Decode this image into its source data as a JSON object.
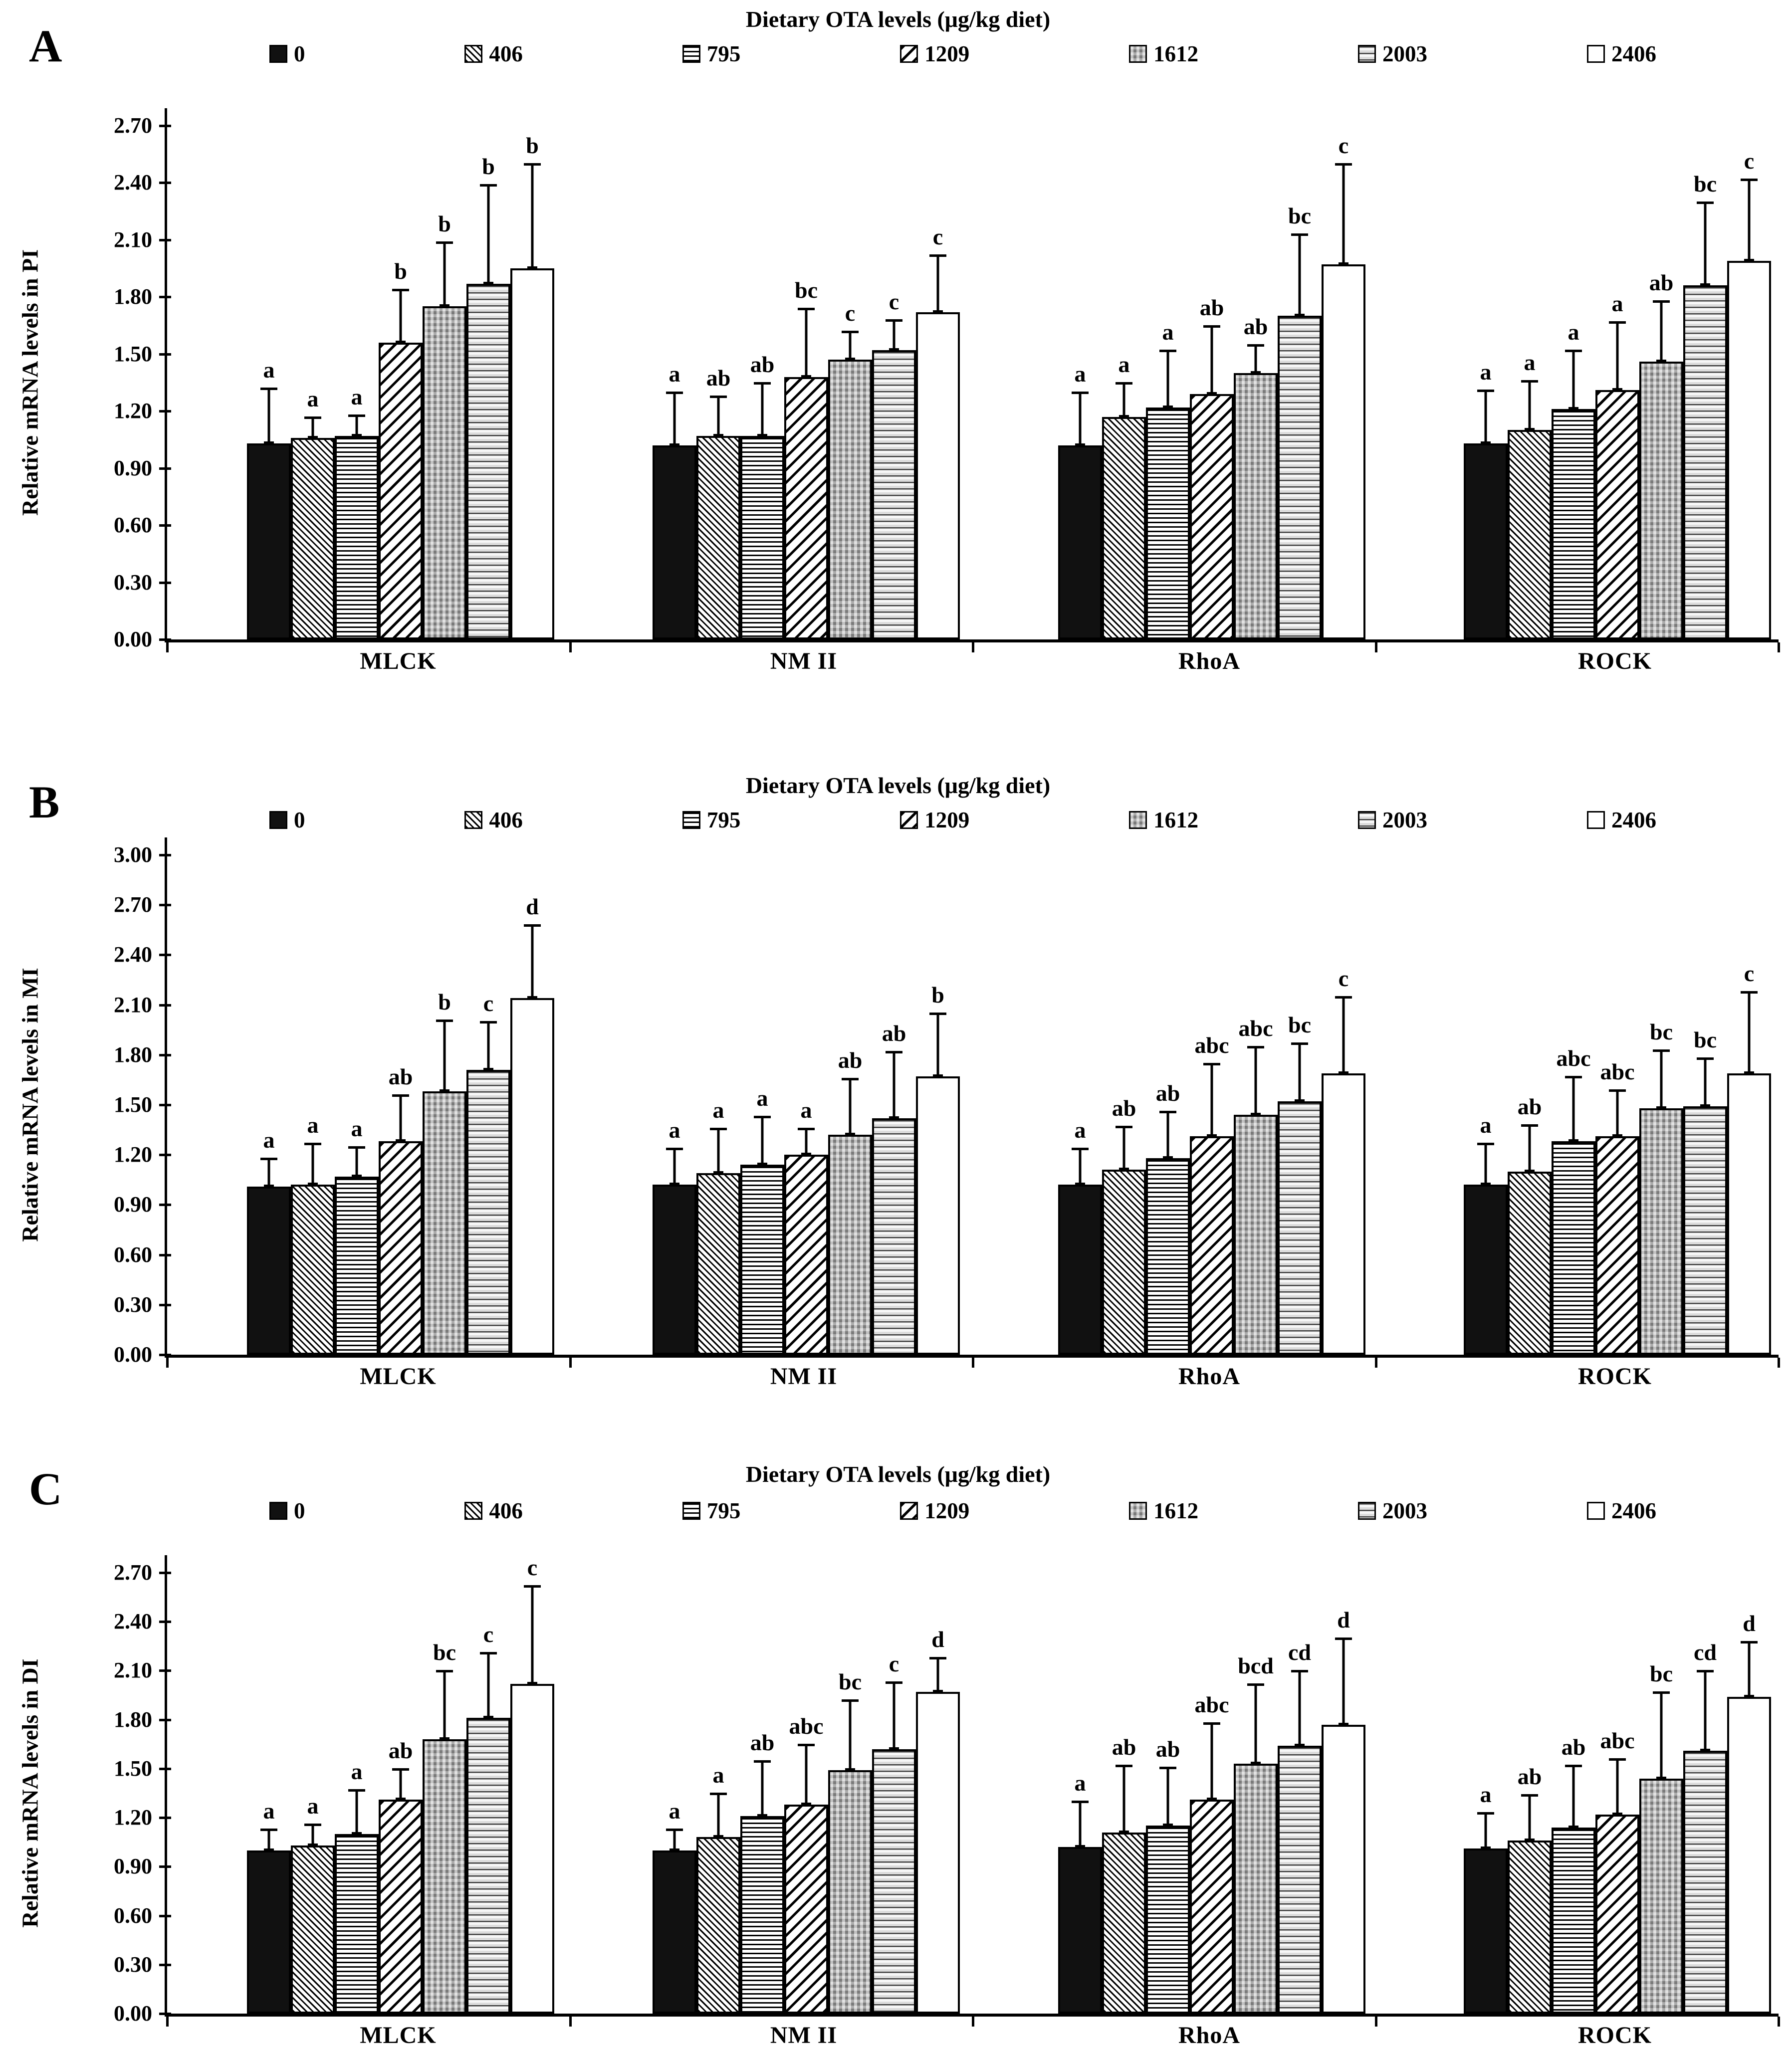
{
  "figure": {
    "legend_title": "Dietary OTA levels (μg/kg diet)",
    "series_labels": [
      "0",
      "406",
      "795",
      "1209",
      "1612",
      "2003",
      "2406"
    ],
    "categories": [
      "MLCK",
      "NM II",
      "RhoA",
      "ROCK"
    ],
    "colors": {
      "ink": "#000000",
      "checker_gray": "#a3a3a3",
      "background": "#ffffff"
    }
  },
  "chart_data": [
    {
      "type": "bar",
      "panel": "A",
      "title": "Dietary OTA levels (μg/kg diet)",
      "ylabel": "Relative mRNA levels in PI",
      "ylim": [
        0,
        2.7
      ],
      "ytick_step": 0.3,
      "yticks": [
        "0.00",
        "0.30",
        "0.60",
        "0.90",
        "1.20",
        "1.50",
        "1.80",
        "2.10",
        "2.40",
        "2.70"
      ],
      "grid": false,
      "legend_position": "top",
      "series_labels": [
        "0",
        "406",
        "795",
        "1209",
        "1612",
        "2003",
        "2406"
      ],
      "groups": [
        {
          "category": "MLCK",
          "values": [
            1.03,
            1.06,
            1.07,
            1.56,
            1.75,
            1.87,
            1.95
          ],
          "errors_top": [
            1.32,
            1.17,
            1.18,
            1.84,
            2.09,
            2.39,
            2.5
          ],
          "letters": [
            "a",
            "a",
            "a",
            "b",
            "b",
            "b",
            "b"
          ]
        },
        {
          "category": "NM II",
          "values": [
            1.02,
            1.07,
            1.07,
            1.38,
            1.47,
            1.52,
            1.72
          ],
          "errors_top": [
            1.3,
            1.28,
            1.35,
            1.74,
            1.62,
            1.68,
            2.02
          ],
          "letters": [
            "a",
            "ab",
            "ab",
            "bc",
            "c",
            "c",
            "c"
          ]
        },
        {
          "category": "RhoA",
          "values": [
            1.02,
            1.17,
            1.22,
            1.29,
            1.4,
            1.7,
            1.97
          ],
          "errors_top": [
            1.3,
            1.35,
            1.52,
            1.65,
            1.55,
            2.13,
            2.5
          ],
          "letters": [
            "a",
            "a",
            "a",
            "ab",
            "ab",
            "bc",
            "c"
          ]
        },
        {
          "category": "ROCK",
          "values": [
            1.03,
            1.1,
            1.21,
            1.31,
            1.46,
            1.86,
            1.99
          ],
          "errors_top": [
            1.31,
            1.36,
            1.52,
            1.67,
            1.78,
            2.3,
            2.42
          ],
          "letters": [
            "a",
            "a",
            "a",
            "a",
            "ab",
            "bc",
            "c"
          ]
        }
      ]
    },
    {
      "type": "bar",
      "panel": "B",
      "title": "Dietary OTA levels (μg/kg diet)",
      "ylabel": "Relative mRNA levels in MI",
      "ylim": [
        0,
        3.0
      ],
      "ytick_step": 0.3,
      "yticks": [
        "0.00",
        "0.30",
        "0.60",
        "0.90",
        "1.20",
        "1.50",
        "1.80",
        "2.10",
        "2.40",
        "2.70",
        "3.00"
      ],
      "grid": false,
      "legend_position": "top",
      "series_labels": [
        "0",
        "406",
        "795",
        "1209",
        "1612",
        "2003",
        "2406"
      ],
      "groups": [
        {
          "category": "MLCK",
          "values": [
            1.01,
            1.02,
            1.07,
            1.28,
            1.58,
            1.71,
            2.14
          ],
          "errors_top": [
            1.18,
            1.27,
            1.25,
            1.56,
            2.01,
            2.0,
            2.58
          ],
          "letters": [
            "a",
            "a",
            "a",
            "ab",
            "b",
            "c",
            "d"
          ]
        },
        {
          "category": "NM II",
          "values": [
            1.02,
            1.09,
            1.14,
            1.2,
            1.32,
            1.42,
            1.67
          ],
          "errors_top": [
            1.24,
            1.36,
            1.43,
            1.36,
            1.66,
            1.82,
            2.05
          ],
          "letters": [
            "a",
            "a",
            "a",
            "a",
            "ab",
            "ab",
            "b"
          ]
        },
        {
          "category": "RhoA",
          "values": [
            1.02,
            1.11,
            1.18,
            1.31,
            1.44,
            1.52,
            1.69
          ],
          "errors_top": [
            1.24,
            1.37,
            1.46,
            1.75,
            1.85,
            1.87,
            2.15
          ],
          "letters": [
            "a",
            "ab",
            "ab",
            "abc",
            "abc",
            "bc",
            "c"
          ]
        },
        {
          "category": "ROCK",
          "values": [
            1.02,
            1.1,
            1.28,
            1.31,
            1.48,
            1.49,
            1.69
          ],
          "errors_top": [
            1.27,
            1.38,
            1.67,
            1.59,
            1.83,
            1.78,
            2.18
          ],
          "letters": [
            "a",
            "ab",
            "abc",
            "abc",
            "bc",
            "bc",
            "c"
          ]
        }
      ]
    },
    {
      "type": "bar",
      "panel": "C",
      "title": "Dietary OTA levels (μg/kg diet)",
      "ylabel": "Relative mRNA levels in DI",
      "ylim": [
        0,
        2.7
      ],
      "ytick_step": 0.3,
      "yticks": [
        "0.00",
        "0.30",
        "0.60",
        "0.90",
        "1.20",
        "1.50",
        "1.80",
        "2.10",
        "2.40",
        "2.70"
      ],
      "grid": false,
      "legend_position": "top",
      "series_labels": [
        "0",
        "406",
        "795",
        "1209",
        "1612",
        "2003",
        "2406"
      ],
      "groups": [
        {
          "category": "MLCK",
          "values": [
            1.0,
            1.03,
            1.1,
            1.31,
            1.68,
            1.81,
            2.02
          ],
          "errors_top": [
            1.13,
            1.16,
            1.37,
            1.5,
            2.1,
            2.21,
            2.62
          ],
          "letters": [
            "a",
            "a",
            "a",
            "ab",
            "bc",
            "c",
            "c"
          ]
        },
        {
          "category": "NM II",
          "values": [
            1.0,
            1.08,
            1.21,
            1.28,
            1.49,
            1.62,
            1.97
          ],
          "errors_top": [
            1.13,
            1.35,
            1.55,
            1.65,
            1.92,
            2.03,
            2.18
          ],
          "letters": [
            "a",
            "a",
            "ab",
            "abc",
            "bc",
            "c",
            "d"
          ]
        },
        {
          "category": "RhoA",
          "values": [
            1.02,
            1.11,
            1.15,
            1.31,
            1.53,
            1.64,
            1.77
          ],
          "errors_top": [
            1.3,
            1.52,
            1.51,
            1.78,
            2.02,
            2.1,
            2.3
          ],
          "letters": [
            "a",
            "ab",
            "ab",
            "abc",
            "bcd",
            "cd",
            "d"
          ]
        },
        {
          "category": "ROCK",
          "values": [
            1.01,
            1.06,
            1.14,
            1.22,
            1.44,
            1.61,
            1.94
          ],
          "errors_top": [
            1.23,
            1.34,
            1.52,
            1.56,
            1.97,
            2.1,
            2.28
          ],
          "letters": [
            "a",
            "ab",
            "ab",
            "abc",
            "bc",
            "cd",
            "d"
          ]
        }
      ]
    }
  ]
}
